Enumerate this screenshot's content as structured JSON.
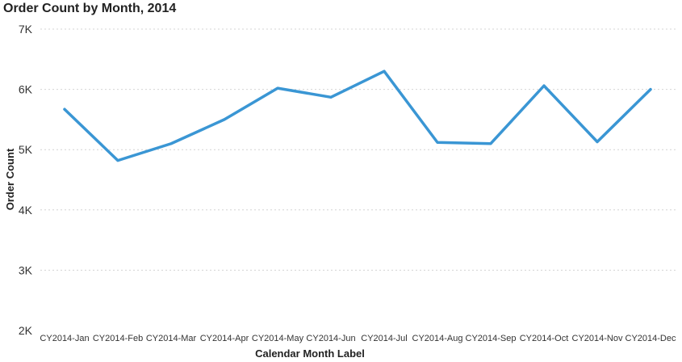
{
  "chart_data": {
    "type": "line",
    "title": "Order Count by Month, 2014",
    "xlabel": "Calendar Month Label",
    "ylabel": "Order Count",
    "categories": [
      "CY2014-Jan",
      "CY2014-Feb",
      "CY2014-Mar",
      "CY2014-Apr",
      "CY2014-May",
      "CY2014-Jun",
      "CY2014-Jul",
      "CY2014-Aug",
      "CY2014-Sep",
      "CY2014-Oct",
      "CY2014-Nov",
      "CY2014-Dec"
    ],
    "series": [
      {
        "values": [
          5670,
          4820,
          5100,
          5500,
          6020,
          5870,
          6300,
          5120,
          5100,
          6060,
          5130,
          6000
        ],
        "color": "#3a96d4"
      }
    ],
    "ylim": [
      2000,
      7000
    ],
    "yticks": [
      2000,
      3000,
      4000,
      5000,
      6000,
      7000
    ],
    "ytick_labels": [
      "2K",
      "3K",
      "4K",
      "5K",
      "6K",
      "7K"
    ],
    "grid": true,
    "legend": "none"
  }
}
